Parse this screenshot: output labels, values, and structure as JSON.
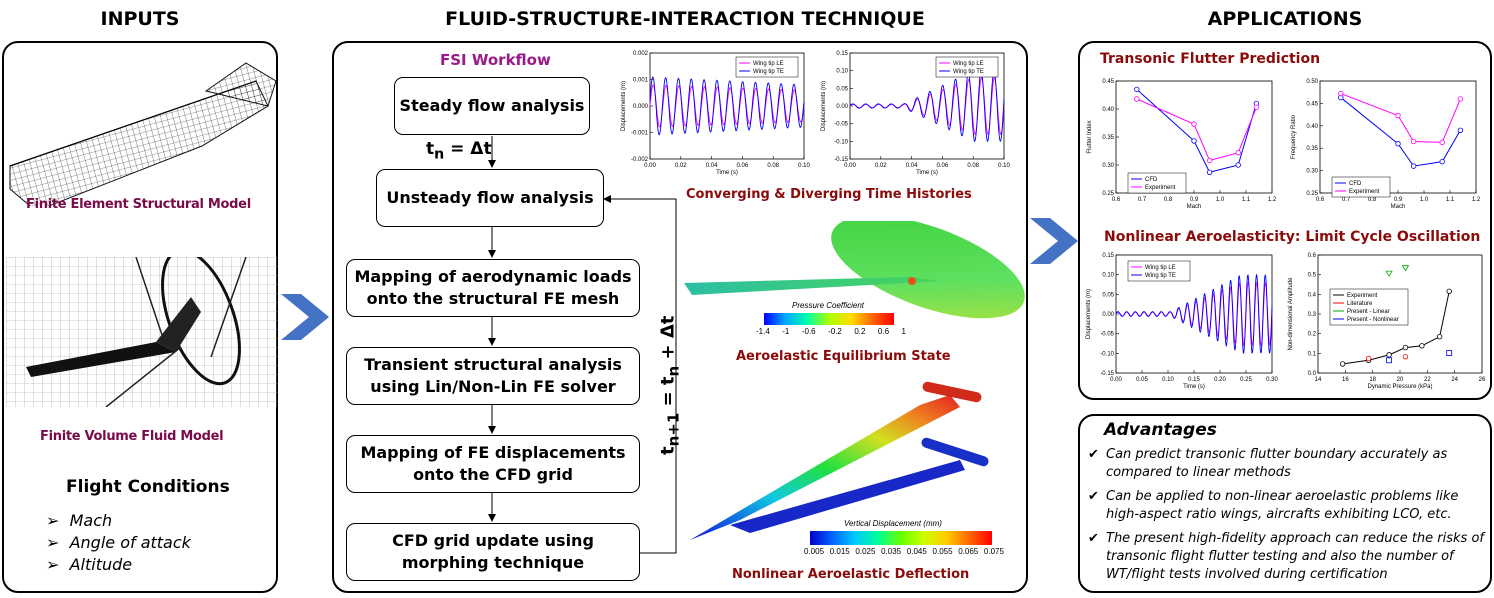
{
  "headers": {
    "inputs": "INPUTS",
    "fsi": "FLUID-STRUCTURE-INTERACTION  TECHNIQUE",
    "applications": "APPLICATIONS"
  },
  "inputs": {
    "fe_caption": "Finite Element Structural Model",
    "fv_caption": "Finite Volume Fluid Model",
    "flight_title": "Flight Conditions",
    "conditions": [
      "Mach",
      "Angle of attack",
      "Altitude"
    ]
  },
  "fsi": {
    "workflow_title": "FSI Workflow",
    "steps": [
      "Steady flow analysis",
      "Unsteady flow analysis",
      "Mapping of aerodynamic loads\nonto the structural FE mesh",
      "Transient structural analysis\nusing Lin/Non-Lin FE solver",
      "Mapping of FE displacements\nonto the CFD grid",
      "CFD grid update using\nmorphing technique"
    ],
    "tn_label_main": "t",
    "tn_label_sub": "n",
    "tn_label_rest": " = Δt",
    "loop_label": "t",
    "loop_sub1": "n+1",
    "loop_mid": " = t",
    "loop_sub2": "n",
    "loop_rest": " + Δt",
    "time_hist_caption": "Converging & Diverging Time Histories",
    "equilibrium_caption": "Aeroelastic Equilibrium State",
    "deflection_caption": "Nonlinear Aeroelastic Deflection",
    "pressure_colorbar": {
      "title": "Pressure Coefficient",
      "ticks": [
        "-1.4",
        "-1",
        "-0.6",
        "-0.2",
        "0.2",
        "0.6",
        "1"
      ]
    },
    "displacement_colorbar": {
      "title": "Vertical Displacement (mm)",
      "ticks": [
        "0.005",
        "0.015",
        "0.025",
        "0.035",
        "0.045",
        "0.055",
        "0.065",
        "0.075"
      ]
    }
  },
  "applications": {
    "flutter_caption": "Transonic  Flutter Prediction",
    "lco_caption": "Nonlinear  Aeroelasticity:  Limit Cycle Oscillation"
  },
  "advantages": {
    "title": "Advantages",
    "items": [
      "Can predict transonic flutter boundary accurately as compared to linear methods",
      "Can be applied to non-linear aeroelastic problems like high-aspect ratio wings, aircrafts exhibiting LCO, etc.",
      "The present high-fidelity approach can reduce the risks of transonic flight flutter testing and also the number of WT/flight tests involved during certification"
    ]
  },
  "chart_data": [
    {
      "type": "line",
      "xlabel": "Time (s)",
      "ylabel": "Displacements (m)",
      "xlim": [
        0,
        0.1
      ],
      "ylim": [
        -0.002,
        0.002
      ],
      "xticks": [
        "0.00",
        "0.02",
        "0.04",
        "0.06",
        "0.08",
        "0.10"
      ],
      "yticks": [
        "-0.002",
        "-0.001",
        "0.000",
        "0.001",
        "0.002"
      ],
      "legend": [
        "Wing tip LE",
        "Wing tip TE"
      ],
      "series": [
        {
          "name": "Wing tip LE",
          "color": "#ff00ff",
          "amplitude_start": 0.0008,
          "amplitude_end": 0.0006,
          "cycles": 12
        },
        {
          "name": "Wing tip TE",
          "color": "#0000ff",
          "amplitude_start": 0.0011,
          "amplitude_end": 0.0008,
          "cycles": 12
        }
      ]
    },
    {
      "type": "line",
      "xlabel": "Time (s)",
      "ylabel": "Displacements (m)",
      "xlim": [
        0,
        0.1
      ],
      "ylim": [
        -0.15,
        0.15
      ],
      "xticks": [
        "0.00",
        "0.02",
        "0.04",
        "0.06",
        "0.08",
        "0.10"
      ],
      "yticks": [
        "-0.15",
        "-0.10",
        "-0.05",
        "0.00",
        "0.05",
        "0.10",
        "0.15"
      ],
      "legend": [
        "Wing tip LE",
        "Wing tip TE"
      ],
      "series": [
        {
          "name": "Wing tip LE",
          "color": "#ff00ff",
          "amplitude_start": 0.005,
          "amplitude_end": 0.08,
          "cycles": 12
        },
        {
          "name": "Wing tip TE",
          "color": "#0000ff",
          "amplitude_start": 0.006,
          "amplitude_end": 0.1,
          "cycles": 12
        }
      ]
    },
    {
      "type": "line",
      "xlabel": "Mach",
      "ylabel": "Flutter Index",
      "xlim": [
        0.6,
        1.2
      ],
      "ylim": [
        0.25,
        0.45
      ],
      "xticks": [
        "0.6",
        "0.7",
        "0.8",
        "0.9",
        "1.0",
        "1.1",
        "1.2"
      ],
      "yticks": [
        "0.25",
        "0.30",
        "0.35",
        "0.40",
        "0.45"
      ],
      "legend": [
        "CFD",
        "Experiment"
      ],
      "series": [
        {
          "name": "CFD",
          "color": "#0000ff",
          "x": [
            0.68,
            0.9,
            0.96,
            1.07,
            1.14
          ],
          "y": [
            0.435,
            0.343,
            0.287,
            0.3,
            0.41
          ]
        },
        {
          "name": "Experiment",
          "color": "#ff00ff",
          "x": [
            0.68,
            0.9,
            0.96,
            1.07,
            1.14
          ],
          "y": [
            0.418,
            0.373,
            0.308,
            0.322,
            0.403
          ]
        }
      ]
    },
    {
      "type": "line",
      "xlabel": "Mach",
      "ylabel": "Frequency Ratio",
      "xlim": [
        0.6,
        1.2
      ],
      "ylim": [
        0.25,
        0.5
      ],
      "xticks": [
        "0.6",
        "0.7",
        "0.8",
        "0.9",
        "1.0",
        "1.1",
        "1.2"
      ],
      "yticks": [
        "0.25",
        "0.30",
        "0.35",
        "0.40",
        "0.45",
        "0.50"
      ],
      "legend": [
        "CFD",
        "Experiment"
      ],
      "series": [
        {
          "name": "CFD",
          "color": "#0000ff",
          "x": [
            0.68,
            0.9,
            0.96,
            1.07,
            1.14
          ],
          "y": [
            0.463,
            0.36,
            0.31,
            0.32,
            0.39
          ]
        },
        {
          "name": "Experiment",
          "color": "#ff00ff",
          "x": [
            0.68,
            0.9,
            0.96,
            1.07,
            1.14
          ],
          "y": [
            0.472,
            0.423,
            0.365,
            0.363,
            0.46
          ]
        }
      ]
    },
    {
      "type": "line",
      "xlabel": "Time (s)",
      "ylabel": "Displacements (m)",
      "xlim": [
        0,
        0.3
      ],
      "ylim": [
        -0.15,
        0.15
      ],
      "xticks": [
        "0.00",
        "0.05",
        "0.10",
        "0.15",
        "0.20",
        "0.25",
        "0.30"
      ],
      "yticks": [
        "-0.15",
        "-0.10",
        "-0.05",
        "0.00",
        "0.05",
        "0.10",
        "0.15"
      ],
      "legend": [
        "Wing tip LE",
        "Wing tip TE"
      ],
      "series": [
        {
          "name": "Wing tip LE",
          "color": "#ff00ff",
          "amplitude_start": 0.005,
          "amplitude_end": 0.08,
          "cycles": 18
        },
        {
          "name": "Wing tip TE",
          "color": "#0000ff",
          "amplitude_start": 0.006,
          "amplitude_end": 0.1,
          "cycles": 18
        }
      ]
    },
    {
      "type": "scatter",
      "xlabel": "Dynamic Pressure (kPa)",
      "ylabel": "Non-dimensional Amplitude",
      "xlim": [
        14,
        26
      ],
      "ylim": [
        -0.05,
        0.6
      ],
      "xticks": [
        "14",
        "16",
        "18",
        "20",
        "22",
        "24",
        "26"
      ],
      "yticks": [
        "0.0",
        "0.1",
        "0.2",
        "0.3",
        "0.4",
        "0.5",
        "0.6"
      ],
      "legend": [
        "Experiment",
        "Literature",
        "Present - Linear",
        "Present - Nonlinear"
      ],
      "series": [
        {
          "name": "Experiment",
          "color": "#000000",
          "x": [
            15.8,
            17.7,
            19.2,
            20.4,
            21.6,
            22.9,
            23.6
          ],
          "y": [
            0.0,
            0.02,
            0.05,
            0.09,
            0.1,
            0.15,
            0.4
          ]
        },
        {
          "name": "Literature",
          "color": "#ff0000",
          "x": [
            17.7,
            20.4
          ],
          "y": [
            0.03,
            0.04
          ]
        },
        {
          "name": "Present - Linear",
          "color": "#00aa00",
          "x": [
            19.2,
            20.4
          ],
          "y": [
            0.5,
            0.53
          ]
        },
        {
          "name": "Present - Nonlinear",
          "color": "#0000ff",
          "x": [
            19.2,
            23.6
          ],
          "y": [
            0.02,
            0.06
          ]
        }
      ]
    }
  ]
}
